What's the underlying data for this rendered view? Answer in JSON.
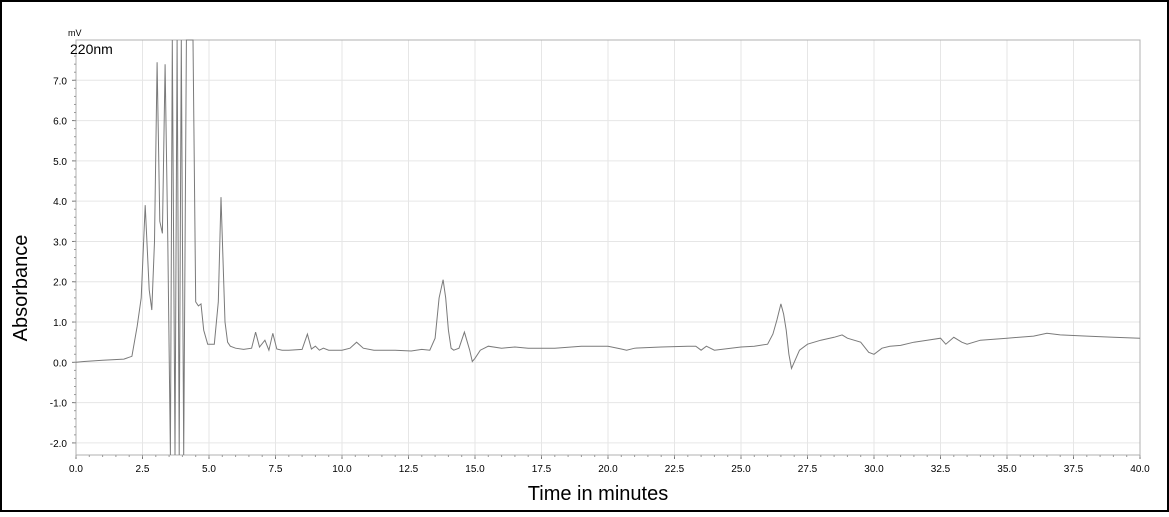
{
  "chart_data": {
    "type": "line",
    "title": "",
    "xlabel": "Time in minutes",
    "ylabel": "Absorbance",
    "y_unit_label": "mV",
    "trace_label": "220nm",
    "xlim": [
      0,
      40
    ],
    "ylim": [
      -2.3,
      8.0
    ],
    "grid": true,
    "x_ticks": [
      "0.0",
      "2.5",
      "5.0",
      "7.5",
      "10.0",
      "12.5",
      "15.0",
      "17.5",
      "20.0",
      "22.5",
      "25.0",
      "27.5",
      "30.0",
      "32.5",
      "35.0",
      "37.5",
      "40.0"
    ],
    "y_ticks": [
      "7.0",
      "6.0",
      "5.0",
      "4.0",
      "3.0",
      "2.0",
      "1.0",
      "0.0",
      "-1.0",
      "-2.0"
    ],
    "series": [
      {
        "name": "220nm",
        "color": "#7a7a7a",
        "x": [
          0.0,
          0.3,
          1.0,
          1.8,
          2.1,
          2.3,
          2.45,
          2.6,
          2.75,
          2.85,
          2.95,
          3.05,
          3.15,
          3.25,
          3.35,
          3.45,
          3.55,
          3.62,
          3.72,
          3.8,
          3.88,
          3.96,
          4.05,
          4.15,
          4.25,
          4.4,
          4.5,
          4.6,
          4.7,
          4.8,
          4.95,
          5.2,
          5.35,
          5.45,
          5.6,
          5.7,
          5.8,
          6.0,
          6.3,
          6.6,
          6.75,
          6.9,
          7.1,
          7.25,
          7.4,
          7.55,
          7.75,
          8.0,
          8.5,
          8.7,
          8.85,
          9.0,
          9.15,
          9.3,
          9.5,
          10.0,
          10.3,
          10.55,
          10.8,
          11.2,
          12.0,
          12.6,
          13.0,
          13.3,
          13.5,
          13.65,
          13.8,
          13.9,
          14.0,
          14.1,
          14.2,
          14.4,
          14.6,
          14.8,
          14.9,
          15.0,
          15.2,
          15.5,
          16.0,
          16.5,
          17.0,
          18.0,
          19.0,
          20.0,
          20.5,
          20.7,
          21.0,
          22.0,
          23.0,
          23.3,
          23.5,
          23.7,
          24.0,
          25.0,
          25.5,
          26.0,
          26.2,
          26.35,
          26.5,
          26.6,
          26.7,
          26.8,
          26.9,
          27.0,
          27.2,
          27.5,
          28.0,
          28.5,
          28.8,
          29.0,
          29.5,
          29.8,
          30.0,
          30.3,
          30.6,
          31.0,
          31.5,
          32.0,
          32.5,
          32.7,
          33.0,
          33.3,
          33.5,
          34.0,
          35.0,
          36.0,
          36.5,
          37.0,
          38.0,
          39.0,
          40.0
        ],
        "y": [
          0.0,
          0.02,
          0.05,
          0.08,
          0.15,
          0.9,
          1.6,
          3.9,
          1.8,
          1.3,
          3.0,
          7.45,
          3.5,
          3.2,
          7.4,
          3.0,
          -2.3,
          8.0,
          -2.3,
          8.0,
          -2.3,
          8.0,
          -2.3,
          8.0,
          8.0,
          8.0,
          1.5,
          1.4,
          1.45,
          0.8,
          0.45,
          0.45,
          1.5,
          4.1,
          1.0,
          0.5,
          0.4,
          0.35,
          0.32,
          0.35,
          0.75,
          0.38,
          0.55,
          0.3,
          0.72,
          0.33,
          0.3,
          0.3,
          0.32,
          0.7,
          0.33,
          0.4,
          0.3,
          0.35,
          0.3,
          0.3,
          0.35,
          0.5,
          0.35,
          0.3,
          0.3,
          0.28,
          0.32,
          0.3,
          0.6,
          1.6,
          2.05,
          1.6,
          0.8,
          0.35,
          0.3,
          0.35,
          0.75,
          0.3,
          0.02,
          0.1,
          0.3,
          0.4,
          0.35,
          0.38,
          0.35,
          0.35,
          0.4,
          0.4,
          0.33,
          0.3,
          0.35,
          0.38,
          0.4,
          0.4,
          0.3,
          0.4,
          0.3,
          0.38,
          0.4,
          0.45,
          0.7,
          1.05,
          1.45,
          1.2,
          0.8,
          0.2,
          -0.15,
          0.0,
          0.3,
          0.45,
          0.55,
          0.62,
          0.68,
          0.6,
          0.5,
          0.25,
          0.2,
          0.35,
          0.4,
          0.42,
          0.5,
          0.55,
          0.6,
          0.45,
          0.62,
          0.5,
          0.45,
          0.55,
          0.6,
          0.65,
          0.72,
          0.68,
          0.65,
          0.62,
          0.6
        ]
      }
    ]
  }
}
